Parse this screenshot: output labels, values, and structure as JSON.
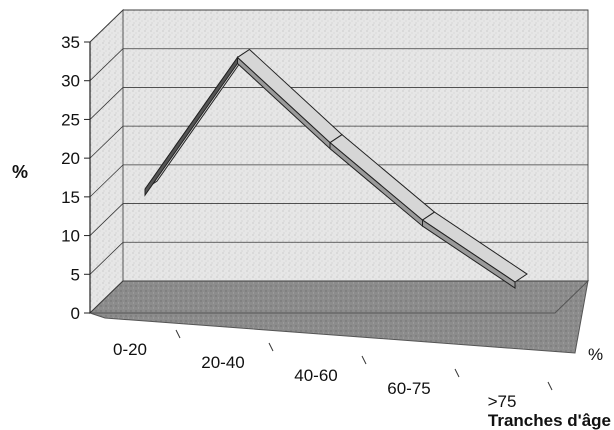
{
  "chart_data": {
    "type": "line",
    "style": "3d-ribbon",
    "categories": [
      "0-20",
      "20-40",
      "40-60",
      "60-75",
      ">75"
    ],
    "series": [
      {
        "name": "%",
        "values": [
          16,
          33,
          22,
          12,
          4
        ]
      }
    ],
    "ylabel": "%",
    "xlabel": "Tranches d'âge",
    "ylim": [
      0,
      35
    ],
    "yticks": [
      0,
      5,
      10,
      15,
      20,
      25,
      30,
      35
    ],
    "grid": true,
    "colors": {
      "ribbon_top": "#d6d6d6",
      "ribbon_front": "#555555",
      "wall": "#e4e4e4",
      "floor": "#8a8a8a",
      "grid": "#3a3a3a"
    }
  }
}
